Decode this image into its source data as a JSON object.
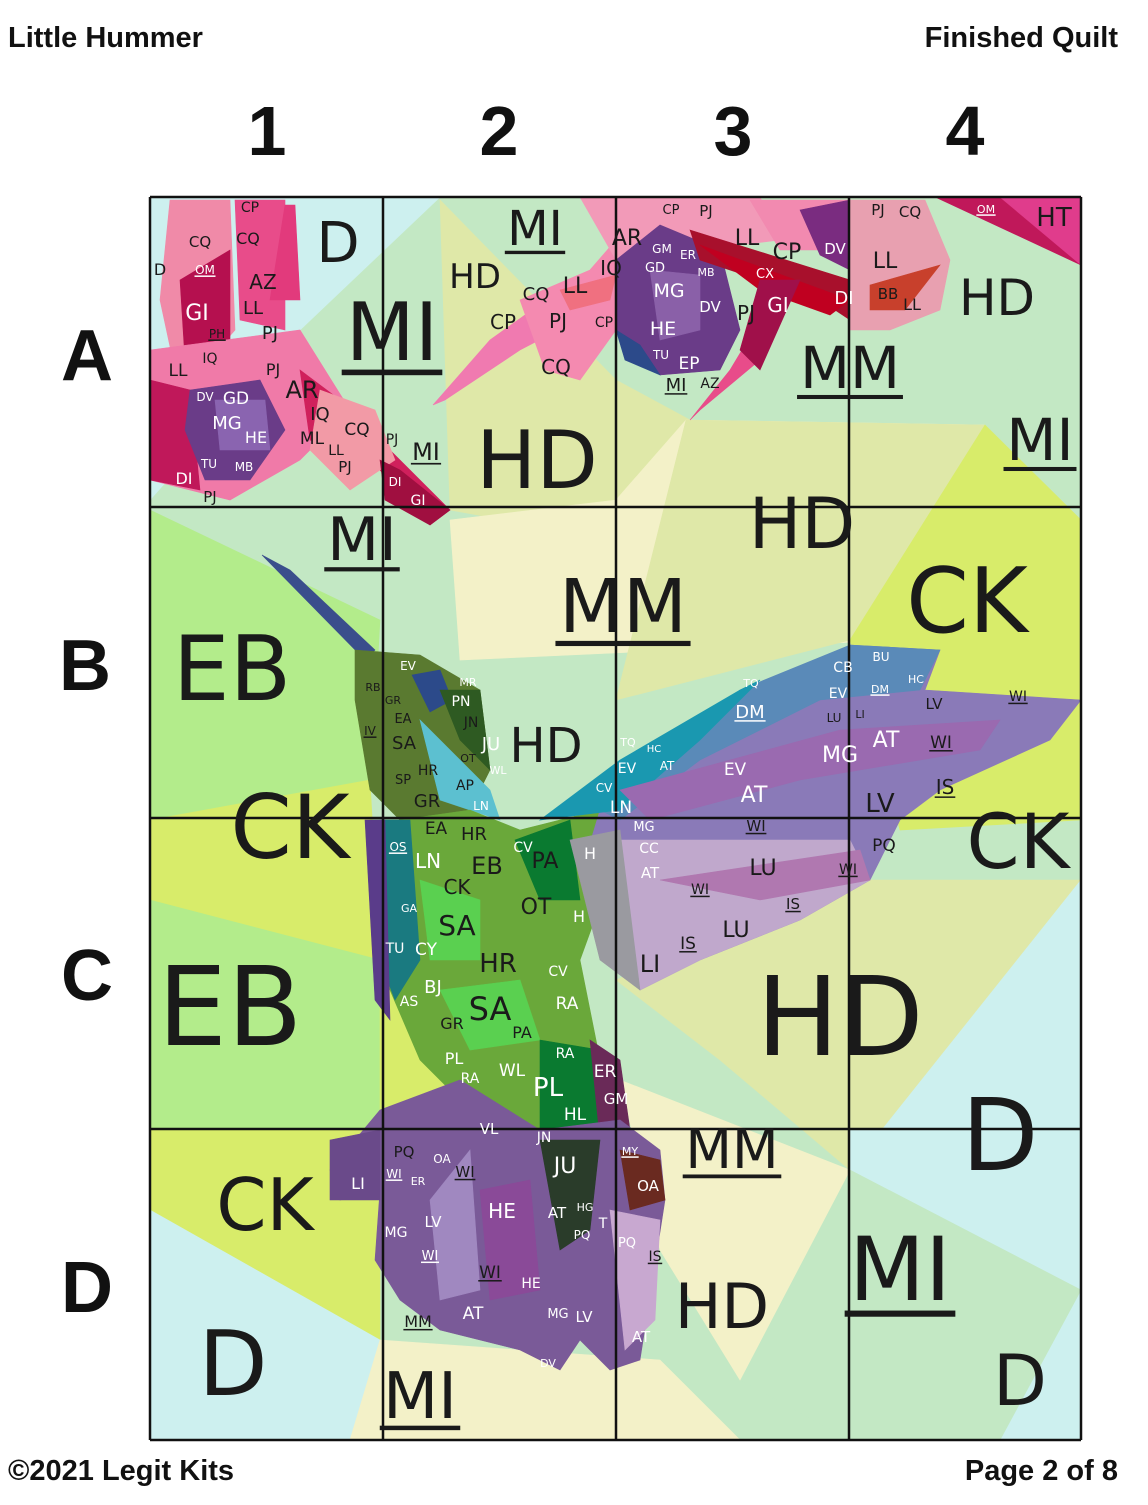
{
  "header": {
    "title": "Little Hummer",
    "subtitle": "Finished Quilt"
  },
  "footer": {
    "copyright": "©2021 Legit Kits",
    "page": "Page 2 of 8"
  },
  "grid": {
    "columns": [
      "1",
      "2",
      "3",
      "4"
    ],
    "rows": [
      "A",
      "B",
      "C",
      "D"
    ]
  },
  "colors": {
    "D": "#cdf0ef",
    "MI": "#c3e8c4",
    "HD": "#dfe8a8",
    "MM": "#f3f1c8",
    "EB": "#b3ec8b",
    "CK": "#d8ec6a",
    "grid_line": "#111111"
  },
  "background_labels": [
    "D",
    "MI",
    "MI",
    "HD",
    "HD",
    "MI",
    "MM",
    "HD",
    "MI",
    "HD",
    "MI",
    "EB",
    "MM",
    "HD",
    "CK",
    "CK",
    "CK",
    "EB",
    "HD",
    "CK",
    "D",
    "MI",
    "MM",
    "HD",
    "MI",
    "D",
    "D"
  ],
  "piece_labels": [
    "CP",
    "CQ",
    "CQ",
    "AZ",
    "GI",
    "LL",
    "PJ",
    "PH",
    "IQ",
    "LL",
    "PJ",
    "AR",
    "GD",
    "MG",
    "HE",
    "IQ",
    "CQ",
    "ML",
    "LL",
    "PJ",
    "DI",
    "PJ",
    "PJ",
    "DI",
    "GI",
    "OM",
    "D",
    "DV",
    "TU",
    "MB",
    "CP",
    "CQ",
    "LL",
    "PJ",
    "IQ",
    "CQ",
    "CP",
    "AR",
    "GM",
    "GD",
    "MG",
    "HE",
    "DV",
    "EP",
    "TU",
    "MI",
    "AZ",
    "PJ",
    "GI",
    "LL",
    "CP",
    "DV",
    "DI",
    "LL",
    "BB",
    "LL",
    "PJ",
    "CQ",
    "HT",
    "OM",
    "CP",
    "PJ",
    "CX",
    "ER",
    "MB",
    "EV",
    "PN",
    "MR",
    "JN",
    "RB",
    "GR",
    "EA",
    "SA",
    "JU",
    "HR",
    "SP",
    "GR",
    "AP",
    "LN",
    "OT",
    "WL",
    "IV",
    "EA",
    "HR",
    "LN",
    "EB",
    "CK",
    "SA",
    "OT",
    "HR",
    "CV",
    "PA",
    "SA",
    "GR",
    "PA",
    "RA",
    "CV",
    "TU",
    "CY",
    "BJ",
    "AS",
    "GA",
    "OS",
    "PL",
    "WL",
    "PL",
    "RA",
    "HL",
    "RA",
    "ER",
    "GM",
    "DM",
    "TQ",
    "BU",
    "CB",
    "EV",
    "HC",
    "DM",
    "LV",
    "WI",
    "LU",
    "LI",
    "MG",
    "AT",
    "WI",
    "EV",
    "AT",
    "LV",
    "IS",
    "TQ",
    "EV",
    "AT",
    "HC",
    "MG",
    "WI",
    "CC",
    "AT",
    "H",
    "LU",
    "WI",
    "PQ",
    "WI",
    "IS",
    "LU",
    "IS",
    "LI",
    "H",
    "CV",
    "LN",
    "PQ",
    "OA",
    "WI",
    "WI",
    "LI",
    "ER",
    "MG",
    "LV",
    "HE",
    "AT",
    "JU",
    "PQ",
    "WI",
    "WI",
    "HE",
    "AT",
    "MG",
    "LV",
    "MM",
    "OA",
    "PQ",
    "IS",
    "AT",
    "VL",
    "JN",
    "DV",
    "T",
    "HG",
    "MY"
  ]
}
